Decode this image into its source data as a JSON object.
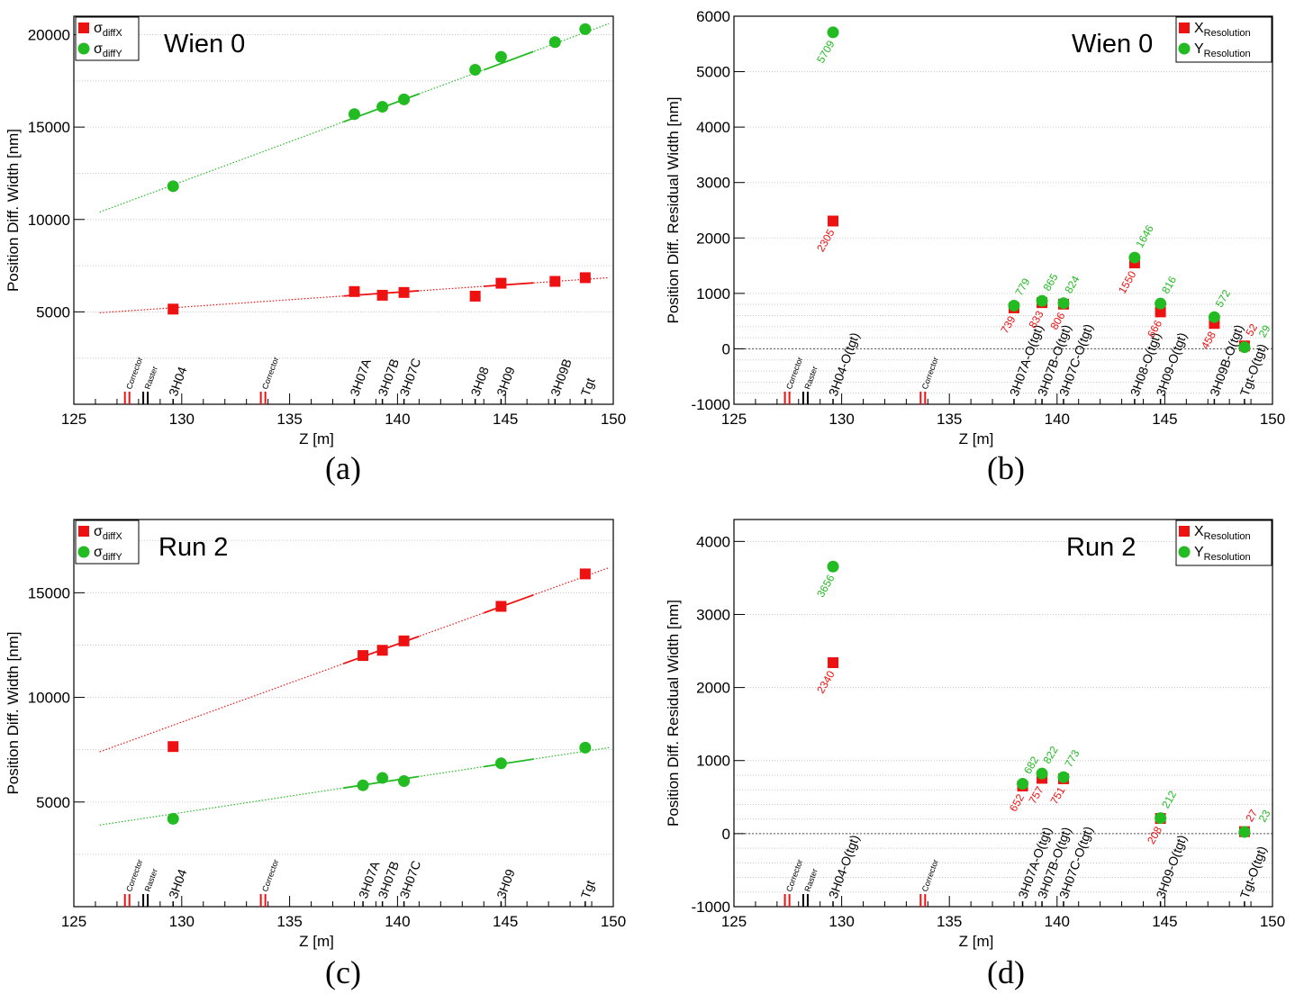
{
  "chart_data": [
    {
      "id": "a",
      "type": "scatter",
      "panel_label": "(a)",
      "title": "Wien 0",
      "xlabel": "Z [m]",
      "ylabel": "Position Diff. Width [nm]",
      "xlim": [
        125,
        150
      ],
      "ylim": [
        0,
        21000
      ],
      "xticks": [
        125,
        130,
        135,
        140,
        145,
        150
      ],
      "yticks": [
        5000,
        10000,
        15000,
        20000
      ],
      "grid": "horizontal dotted",
      "legend_position": "top-left",
      "series": [
        {
          "name": "σdiffX",
          "label_main": "σ",
          "label_sub": "diffX",
          "marker": "square",
          "color": "#ee1111",
          "x": [
            129.6,
            138.0,
            139.3,
            140.3,
            143.6,
            144.8,
            147.3,
            148.7
          ],
          "y": [
            5150,
            6100,
            5900,
            6050,
            5850,
            6550,
            6650,
            6850
          ],
          "fit": [
            [
              126.2,
              4950
            ],
            [
              149.8,
              6850
            ]
          ]
        },
        {
          "name": "σdiffY",
          "label_main": "σ",
          "label_sub": "diffY",
          "marker": "circle",
          "color": "#22bb22",
          "x": [
            129.6,
            138.0,
            139.3,
            140.3,
            143.6,
            144.8,
            147.3,
            148.7
          ],
          "y": [
            11800,
            15700,
            16100,
            16500,
            18100,
            18800,
            19600,
            20300
          ],
          "fit": [
            [
              126.2,
              10400
            ],
            [
              149.8,
              20600
            ]
          ]
        }
      ],
      "annotations": [],
      "elements": [
        {
          "label": "Corrector",
          "x": 127.45,
          "color": "#ee1111",
          "kind": "pair"
        },
        {
          "label": "Raster",
          "x": 128.3,
          "color": "#000000",
          "kind": "pair"
        },
        {
          "label": "3H04",
          "x": 129.6,
          "color": "#000000",
          "kind": "single"
        },
        {
          "label": "Corrector",
          "x": 133.75,
          "color": "#ee1111",
          "kind": "pair"
        },
        {
          "label": "3H07A",
          "x": 138.0,
          "color": "#000000",
          "kind": "single"
        },
        {
          "label": "3H07B",
          "x": 139.3,
          "color": "#000000",
          "kind": "single"
        },
        {
          "label": "3H07C",
          "x": 140.3,
          "color": "#000000",
          "kind": "single"
        },
        {
          "label": "3H08",
          "x": 143.6,
          "color": "#000000",
          "kind": "single"
        },
        {
          "label": "3H09",
          "x": 144.8,
          "color": "#000000",
          "kind": "single"
        },
        {
          "label": "3H09B",
          "x": 147.3,
          "color": "#000000",
          "kind": "single"
        },
        {
          "label": "Tgt",
          "x": 148.7,
          "color": "#000000",
          "kind": "single"
        }
      ]
    },
    {
      "id": "b",
      "type": "scatter",
      "panel_label": "(b)",
      "title": "Wien 0",
      "xlabel": "Z [m]",
      "ylabel": "Position Diff. Residual Width [nm]",
      "xlim": [
        125,
        150
      ],
      "ylim": [
        -1000,
        6000
      ],
      "xticks": [
        125,
        130,
        135,
        140,
        145,
        150
      ],
      "yticks": [
        -1000,
        0,
        1000,
        2000,
        3000,
        4000,
        5000,
        6000
      ],
      "grid": "horizontal dotted",
      "legend_position": "top-right",
      "series": [
        {
          "name": "XResolution",
          "label_main": "X",
          "label_sub": "Resolution",
          "marker": "square",
          "color": "#ee1111",
          "x": [
            129.6,
            138.0,
            139.3,
            140.3,
            143.6,
            144.8,
            147.3,
            148.7
          ],
          "y": [
            2305,
            739,
            833,
            806,
            1550,
            666,
            458,
            52
          ]
        },
        {
          "name": "YResolution",
          "label_main": "Y",
          "label_sub": "Resolution",
          "marker": "circle",
          "color": "#22bb22",
          "x": [
            129.6,
            138.0,
            139.3,
            140.3,
            143.6,
            144.8,
            147.3,
            148.7
          ],
          "y": [
            5709,
            779,
            865,
            824,
            1646,
            816,
            572,
            29
          ]
        }
      ],
      "annotations": [
        {
          "text": "5709",
          "x": 129.6,
          "y": 5709,
          "color": "#22bb22",
          "pos": "below"
        },
        {
          "text": "2305",
          "x": 129.6,
          "y": 2305,
          "color": "#ee1111",
          "pos": "below"
        },
        {
          "text": "779",
          "x": 138.0,
          "y": 779,
          "color": "#22bb22",
          "pos": "above"
        },
        {
          "text": "739",
          "x": 138.0,
          "y": 739,
          "color": "#ee1111",
          "pos": "below"
        },
        {
          "text": "865",
          "x": 139.3,
          "y": 865,
          "color": "#22bb22",
          "pos": "above"
        },
        {
          "text": "833",
          "x": 139.3,
          "y": 833,
          "color": "#ee1111",
          "pos": "below"
        },
        {
          "text": "824",
          "x": 140.3,
          "y": 824,
          "color": "#22bb22",
          "pos": "above"
        },
        {
          "text": "806",
          "x": 140.3,
          "y": 806,
          "color": "#ee1111",
          "pos": "below"
        },
        {
          "text": "1646",
          "x": 143.6,
          "y": 1646,
          "color": "#22bb22",
          "pos": "above"
        },
        {
          "text": "1550",
          "x": 143.6,
          "y": 1550,
          "color": "#ee1111",
          "pos": "below"
        },
        {
          "text": "816",
          "x": 144.8,
          "y": 816,
          "color": "#22bb22",
          "pos": "above"
        },
        {
          "text": "666",
          "x": 144.8,
          "y": 666,
          "color": "#ee1111",
          "pos": "below"
        },
        {
          "text": "572",
          "x": 147.3,
          "y": 572,
          "color": "#22bb22",
          "pos": "above"
        },
        {
          "text": "458",
          "x": 147.3,
          "y": 458,
          "color": "#ee1111",
          "pos": "below"
        },
        {
          "text": "52",
          "x": 148.7,
          "y": 52,
          "color": "#ee1111",
          "pos": "above"
        },
        {
          "text": "29",
          "x": 149.3,
          "y": 29,
          "color": "#22bb22",
          "pos": "above"
        }
      ],
      "elements": [
        {
          "label": "Corrector",
          "x": 127.45,
          "color": "#ee1111",
          "kind": "pair"
        },
        {
          "label": "Raster",
          "x": 128.3,
          "color": "#000000",
          "kind": "pair"
        },
        {
          "label": "3H04-O(tgt)",
          "x": 129.6,
          "color": "#000000",
          "kind": "single"
        },
        {
          "label": "Corrector",
          "x": 133.75,
          "color": "#ee1111",
          "kind": "pair"
        },
        {
          "label": "3H07A-O(tgt)",
          "x": 138.0,
          "color": "#000000",
          "kind": "single"
        },
        {
          "label": "3H07B-O(tgt)",
          "x": 139.3,
          "color": "#000000",
          "kind": "single"
        },
        {
          "label": "3H07C-O(tgt)",
          "x": 140.3,
          "color": "#000000",
          "kind": "single"
        },
        {
          "label": "3H08-O(tgt)",
          "x": 143.6,
          "color": "#000000",
          "kind": "single"
        },
        {
          "label": "3H09-O(tgt)",
          "x": 144.8,
          "color": "#000000",
          "kind": "single"
        },
        {
          "label": "3H09B-O(tgt)",
          "x": 147.3,
          "color": "#000000",
          "kind": "single"
        },
        {
          "label": "Tgt-O(tgt)",
          "x": 148.7,
          "color": "#000000",
          "kind": "single"
        }
      ]
    },
    {
      "id": "c",
      "type": "scatter",
      "panel_label": "(c)",
      "title": "Run 2",
      "xlabel": "Z [m]",
      "ylabel": "Position Diff. Width [nm]",
      "xlim": [
        125,
        150
      ],
      "ylim": [
        0,
        18500
      ],
      "xticks": [
        125,
        130,
        135,
        140,
        145,
        150
      ],
      "yticks": [
        5000,
        10000,
        15000
      ],
      "grid": "horizontal dotted",
      "legend_position": "top-left",
      "series": [
        {
          "name": "σdiffX",
          "label_main": "σ",
          "label_sub": "diffX",
          "marker": "square",
          "color": "#ee1111",
          "x": [
            129.6,
            138.4,
            139.3,
            140.3,
            144.8,
            148.7
          ],
          "y": [
            7650,
            12000,
            12250,
            12700,
            14350,
            15900
          ],
          "fit": [
            [
              126.2,
              7400
            ],
            [
              149.8,
              16200
            ]
          ]
        },
        {
          "name": "σdiffY",
          "label_main": "σ",
          "label_sub": "diffY",
          "marker": "circle",
          "color": "#22bb22",
          "x": [
            129.6,
            138.4,
            139.3,
            140.3,
            144.8,
            148.7
          ],
          "y": [
            4200,
            5800,
            6150,
            6000,
            6850,
            7600
          ],
          "fit": [
            [
              126.2,
              3900
            ],
            [
              149.8,
              7600
            ]
          ]
        }
      ],
      "annotations": [],
      "elements": [
        {
          "label": "Corrector",
          "x": 127.45,
          "color": "#ee1111",
          "kind": "pair"
        },
        {
          "label": "Raster",
          "x": 128.3,
          "color": "#000000",
          "kind": "pair"
        },
        {
          "label": "3H04",
          "x": 129.6,
          "color": "#000000",
          "kind": "single"
        },
        {
          "label": "Corrector",
          "x": 133.75,
          "color": "#ee1111",
          "kind": "pair"
        },
        {
          "label": "3H07A",
          "x": 138.4,
          "color": "#000000",
          "kind": "single"
        },
        {
          "label": "3H07B",
          "x": 139.3,
          "color": "#000000",
          "kind": "single"
        },
        {
          "label": "3H07C",
          "x": 140.3,
          "color": "#000000",
          "kind": "single"
        },
        {
          "label": "3H09",
          "x": 144.8,
          "color": "#000000",
          "kind": "single"
        },
        {
          "label": "Tgt",
          "x": 148.7,
          "color": "#000000",
          "kind": "single"
        }
      ]
    },
    {
      "id": "d",
      "type": "scatter",
      "panel_label": "(d)",
      "title": "Run 2",
      "xlabel": "Z [m]",
      "ylabel": "Position Diff. Residual Width [nm]",
      "xlim": [
        125,
        150
      ],
      "ylim": [
        -1000,
        4300
      ],
      "xticks": [
        125,
        130,
        135,
        140,
        145,
        150
      ],
      "yticks": [
        -1000,
        0,
        1000,
        2000,
        3000,
        4000
      ],
      "grid": "horizontal dotted",
      "legend_position": "top-right",
      "series": [
        {
          "name": "XResolution",
          "label_main": "X",
          "label_sub": "Resolution",
          "marker": "square",
          "color": "#ee1111",
          "x": [
            129.6,
            138.4,
            139.3,
            140.3,
            144.8,
            148.7
          ],
          "y": [
            2340,
            652,
            757,
            751,
            208,
            27
          ]
        },
        {
          "name": "YResolution",
          "label_main": "Y",
          "label_sub": "Resolution",
          "marker": "circle",
          "color": "#22bb22",
          "x": [
            129.6,
            138.4,
            139.3,
            140.3,
            144.8,
            148.7
          ],
          "y": [
            3656,
            682,
            822,
            773,
            212,
            23
          ]
        }
      ],
      "annotations": [
        {
          "text": "3656",
          "x": 129.6,
          "y": 3656,
          "color": "#22bb22",
          "pos": "below"
        },
        {
          "text": "2340",
          "x": 129.6,
          "y": 2340,
          "color": "#ee1111",
          "pos": "below"
        },
        {
          "text": "682",
          "x": 138.4,
          "y": 682,
          "color": "#22bb22",
          "pos": "above"
        },
        {
          "text": "652",
          "x": 138.4,
          "y": 652,
          "color": "#ee1111",
          "pos": "below"
        },
        {
          "text": "822",
          "x": 139.3,
          "y": 822,
          "color": "#22bb22",
          "pos": "above"
        },
        {
          "text": "757",
          "x": 139.3,
          "y": 757,
          "color": "#ee1111",
          "pos": "below"
        },
        {
          "text": "773",
          "x": 140.3,
          "y": 773,
          "color": "#22bb22",
          "pos": "above"
        },
        {
          "text": "751",
          "x": 140.3,
          "y": 751,
          "color": "#ee1111",
          "pos": "below"
        },
        {
          "text": "212",
          "x": 144.8,
          "y": 212,
          "color": "#22bb22",
          "pos": "above"
        },
        {
          "text": "208",
          "x": 144.8,
          "y": 208,
          "color": "#ee1111",
          "pos": "below"
        },
        {
          "text": "27",
          "x": 148.7,
          "y": 27,
          "color": "#ee1111",
          "pos": "above"
        },
        {
          "text": "23",
          "x": 149.3,
          "y": 23,
          "color": "#22bb22",
          "pos": "above"
        }
      ],
      "elements": [
        {
          "label": "Corrector",
          "x": 127.45,
          "color": "#ee1111",
          "kind": "pair"
        },
        {
          "label": "Raster",
          "x": 128.3,
          "color": "#000000",
          "kind": "pair"
        },
        {
          "label": "3H04-O(tgt)",
          "x": 129.6,
          "color": "#000000",
          "kind": "single"
        },
        {
          "label": "Corrector",
          "x": 133.75,
          "color": "#ee1111",
          "kind": "pair"
        },
        {
          "label": "3H07A-O(tgt)",
          "x": 138.4,
          "color": "#000000",
          "kind": "single"
        },
        {
          "label": "3H07B-O(tgt)",
          "x": 139.3,
          "color": "#000000",
          "kind": "single"
        },
        {
          "label": "3H07C-O(tgt)",
          "x": 140.3,
          "color": "#000000",
          "kind": "single"
        },
        {
          "label": "3H09-O(tgt)",
          "x": 144.8,
          "color": "#000000",
          "kind": "single"
        },
        {
          "label": "Tgt-O(tgt)",
          "x": 148.7,
          "color": "#000000",
          "kind": "single"
        }
      ]
    }
  ]
}
